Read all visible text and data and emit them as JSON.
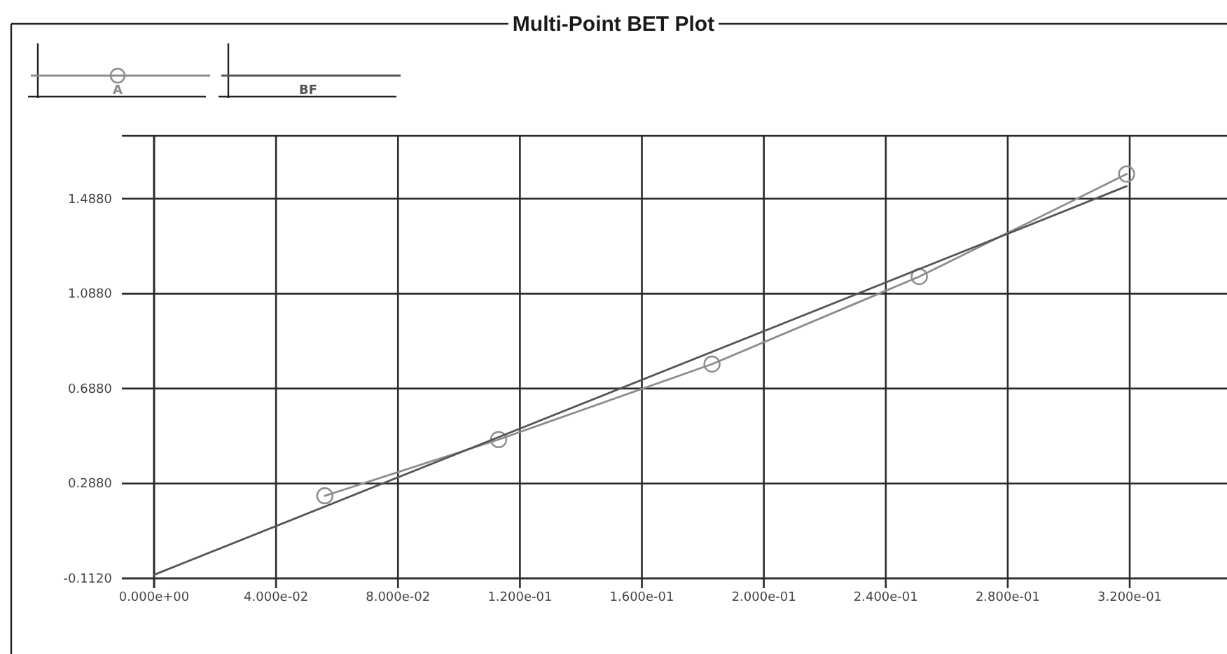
{
  "chart_data": {
    "type": "line",
    "title": "Multi-Point BET Plot",
    "xlim": [
      0,
      0.351
    ],
    "ylim": [
      -0.112,
      1.753
    ],
    "xticks": [
      {
        "value": 0,
        "label": "0.000e+00"
      },
      {
        "value": 0.04,
        "label": "4.000e-02"
      },
      {
        "value": 0.08,
        "label": "8.000e-02"
      },
      {
        "value": 0.12,
        "label": "1.200e-01"
      },
      {
        "value": 0.16,
        "label": "1.600e-01"
      },
      {
        "value": 0.2,
        "label": "2.000e-01"
      },
      {
        "value": 0.24,
        "label": "2.400e-01"
      },
      {
        "value": 0.28,
        "label": "2.800e-01"
      },
      {
        "value": 0.32,
        "label": "3.200e-01"
      }
    ],
    "yticks": [
      {
        "value": -0.112,
        "label": "-0.1120"
      },
      {
        "value": 0.288,
        "label": "0.2880"
      },
      {
        "value": 0.688,
        "label": "0.6880"
      },
      {
        "value": 1.088,
        "label": "1.0880"
      },
      {
        "value": 1.488,
        "label": "1.4880"
      }
    ],
    "grid": true,
    "legend": "top left",
    "series": [
      {
        "name": "A",
        "color": "#8c8c8c",
        "marker": "circle",
        "x": [
          0.056,
          0.113,
          0.183,
          0.251,
          0.319
        ],
        "values": [
          0.236,
          0.473,
          0.791,
          1.16,
          1.592
        ]
      },
      {
        "name": "BF",
        "color": "#555555",
        "marker": "none",
        "x": [
          0,
          0.319
        ],
        "values": [
          -0.097,
          1.541
        ]
      }
    ]
  }
}
